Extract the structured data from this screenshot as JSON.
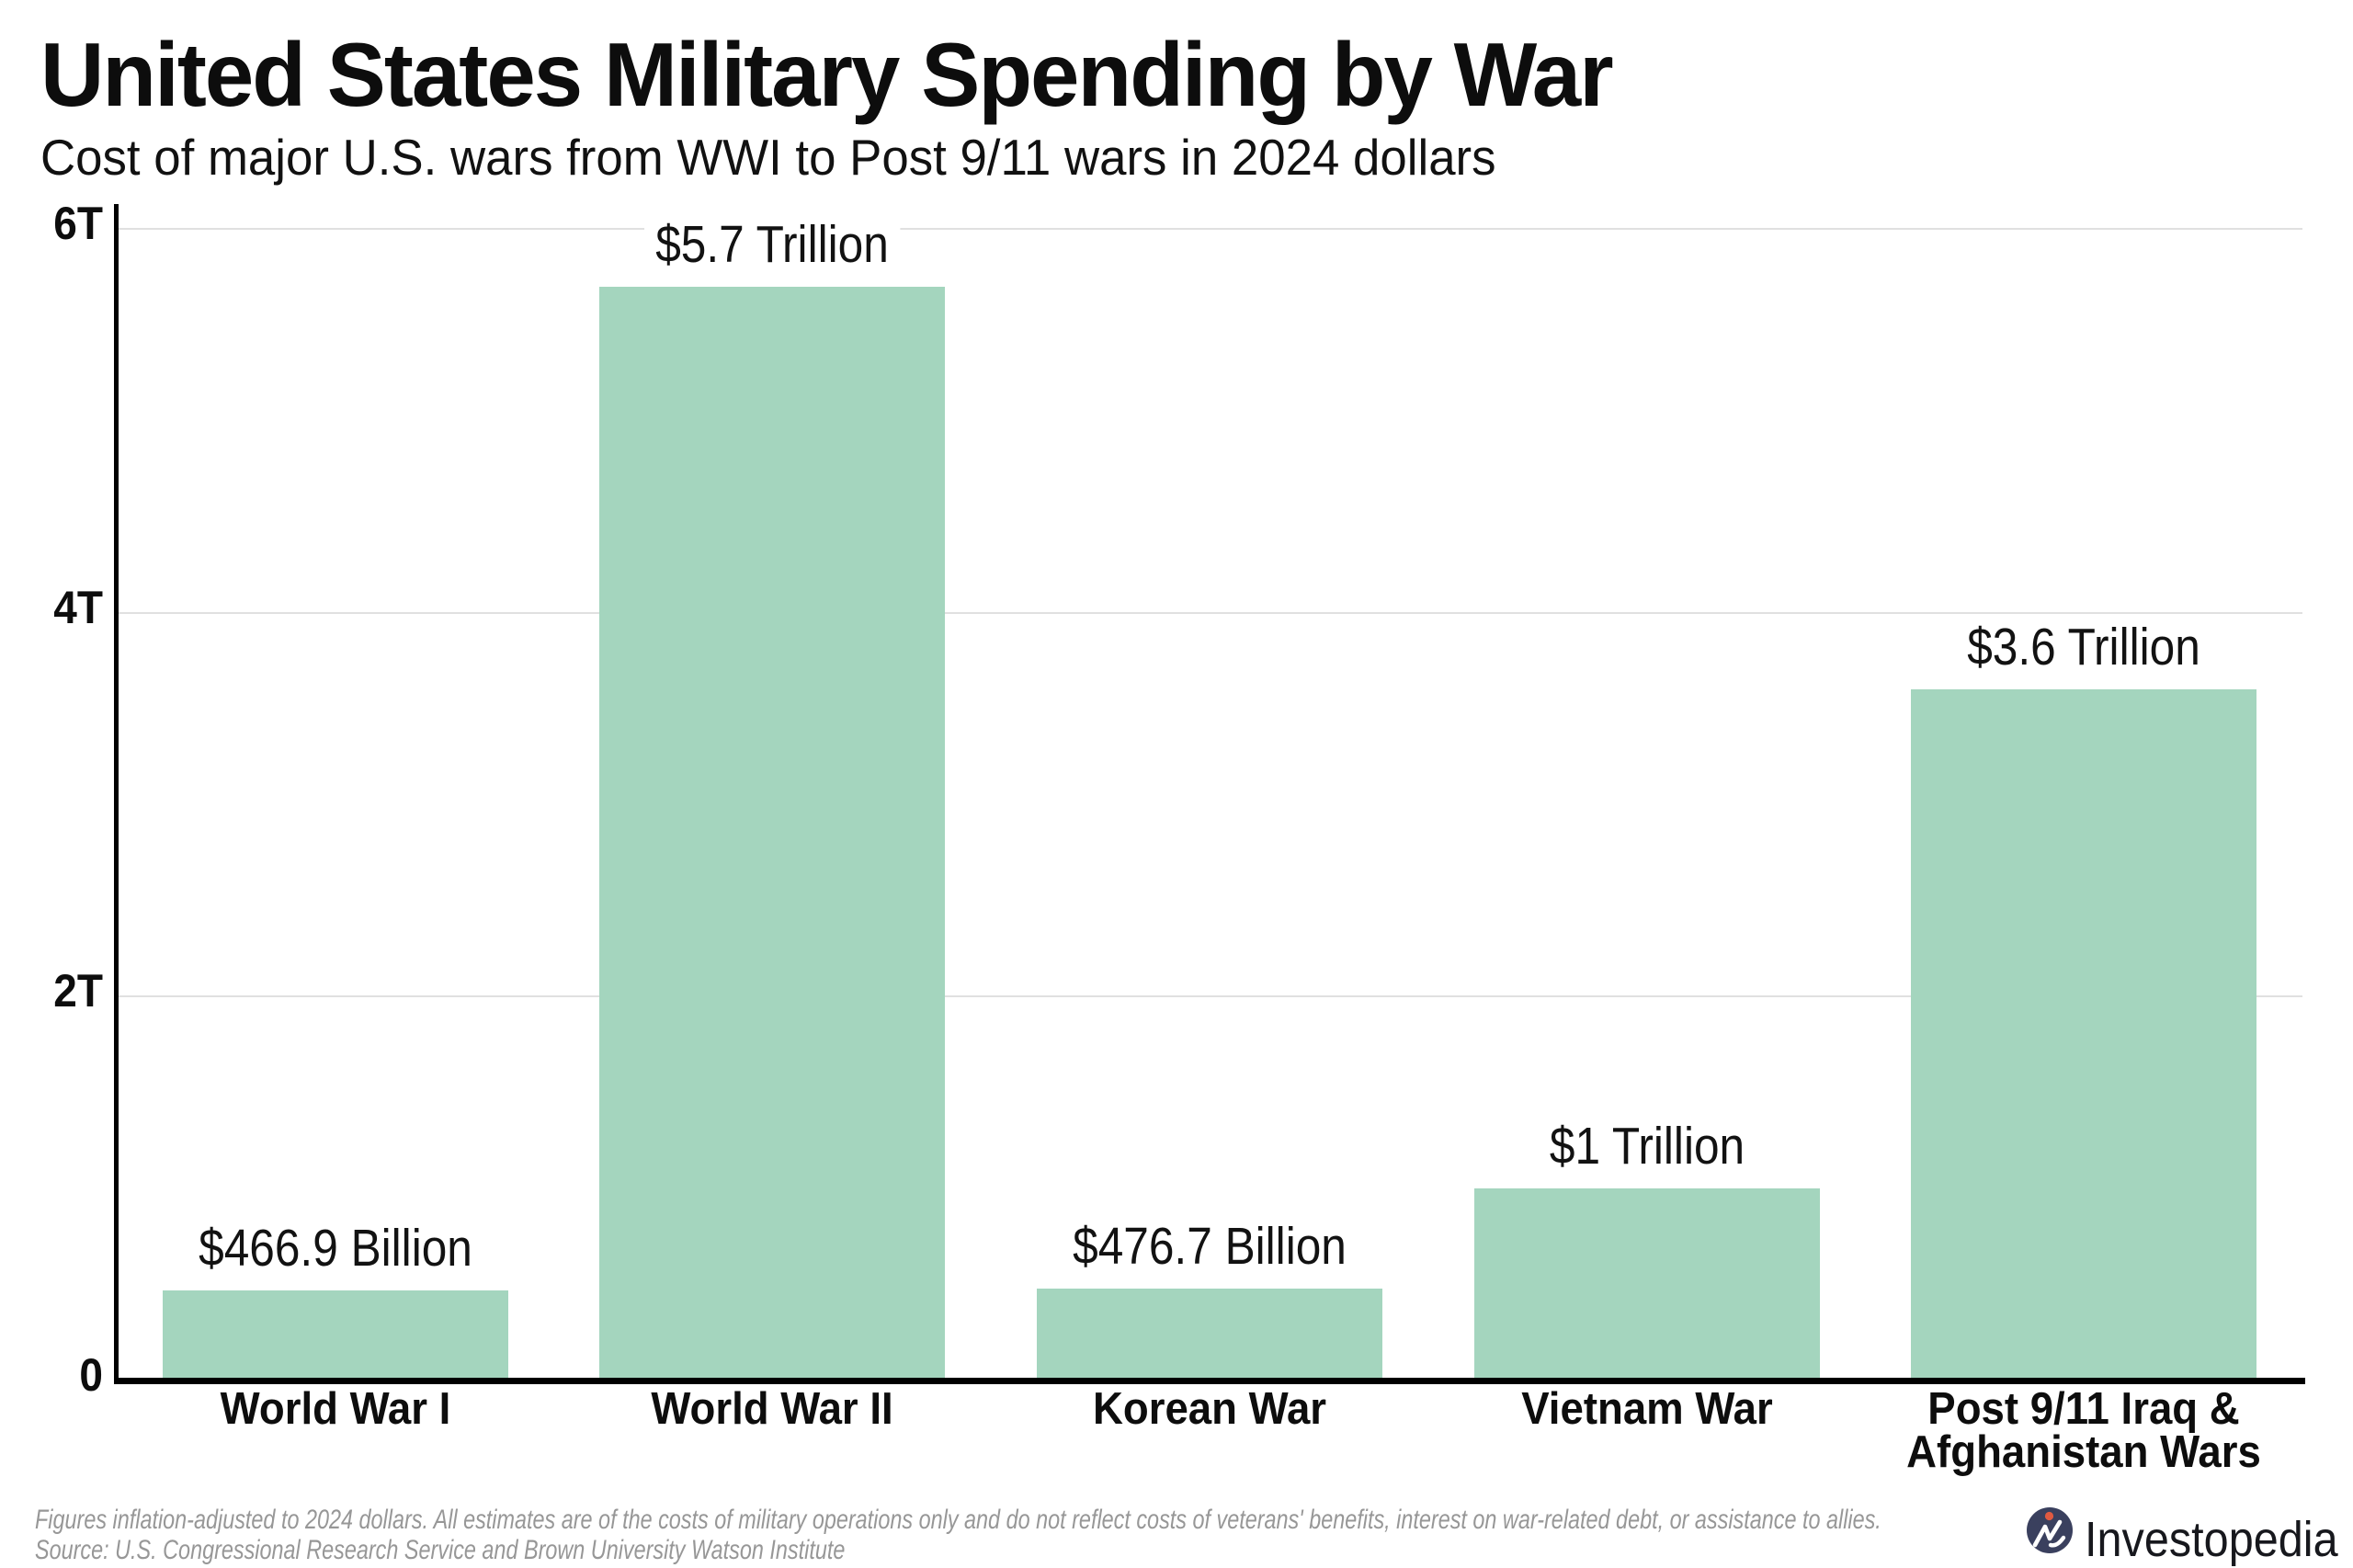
{
  "title": "United States Military Spending by War",
  "subtitle": "Cost of major U.S. wars from WWI to Post 9/11 wars in 2024 dollars",
  "chart_data": {
    "type": "bar",
    "categories": [
      "World War I",
      "World War II",
      "Korean War",
      "Vietnam War",
      "Post 9/11 Iraq &\nAfghanistan Wars"
    ],
    "values": [
      0.4669,
      5.7,
      0.4767,
      1.0,
      3.6
    ],
    "value_labels": [
      "$466.9 Billion",
      "$5.7 Trillion",
      "$476.7 Billion",
      "$1 Trillion",
      "$3.6 Trillion"
    ],
    "units": "trillions of 2024 dollars",
    "ylim": [
      0,
      6
    ],
    "yticks": [
      {
        "value": 0,
        "label": "0"
      },
      {
        "value": 2,
        "label": "2T"
      },
      {
        "value": 4,
        "label": "4T"
      },
      {
        "value": 6,
        "label": "6T"
      }
    ],
    "grid": "horizontal",
    "bar_color": "#a4d5be"
  },
  "footnote_line1": "Figures inflation-adjusted to 2024 dollars. All estimates are of the costs of military operations only and do not reflect costs of veterans' benefits, interest on war-related debt, or assistance to allies.",
  "footnote_line2": "Source: U.S. Congressional Research Service and Brown University Watson Institute",
  "brand": {
    "name": "Investopedia",
    "circle_color": "#3a405e",
    "dot_color": "#e05a41"
  }
}
